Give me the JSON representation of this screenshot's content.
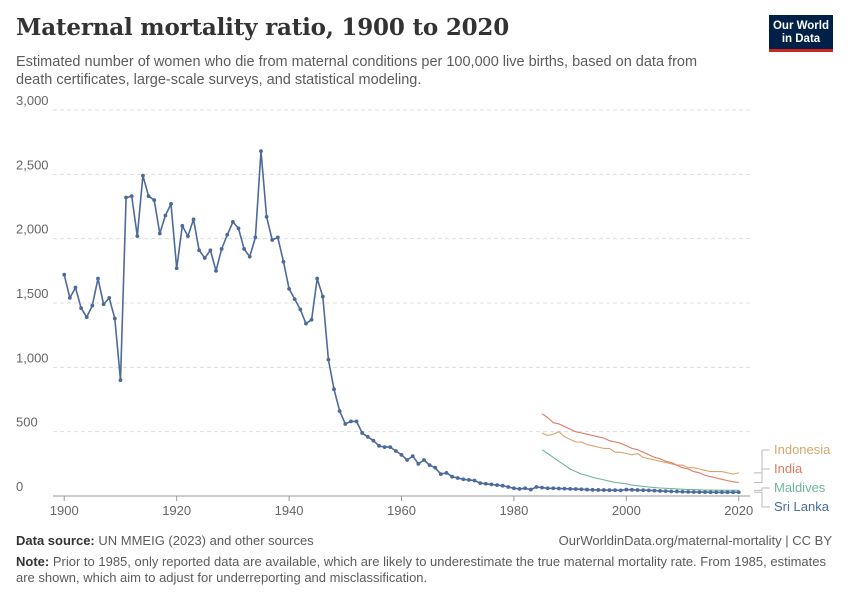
{
  "header": {
    "title": "Maternal mortality ratio, 1900 to 2020",
    "subtitle": "Estimated number of women who die from maternal conditions per 100,000 live births, based on data from death certificates, large-scale surveys, and statistical modeling."
  },
  "logo": {
    "line1": "Our World",
    "line2": "in Data"
  },
  "footer": {
    "source_label": "Data source:",
    "source_text": "UN MMEIG (2023) and other sources",
    "url": "OurWorldinData.org/maternal-mortality | CC BY",
    "note_label": "Note:",
    "note_text": "Prior to 1985, only reported data are available, which are likely to underestimate the true maternal mortality rate. From 1985, estimates are shown, which aim to adjust for underreporting and misclassification."
  },
  "chart_data": {
    "type": "line",
    "xlim": [
      1898,
      2022
    ],
    "ylim": [
      0,
      3000
    ],
    "x_ticks": [
      1900,
      1920,
      1940,
      1960,
      1980,
      2000,
      2020
    ],
    "y_ticks": [
      0,
      500,
      1000,
      1500,
      2000,
      2500,
      3000
    ],
    "y_tick_labels": [
      "0",
      "500",
      "1,000",
      "1,500",
      "2,000",
      "2,500",
      "3,000"
    ],
    "grid": true,
    "legend": "right",
    "series": [
      {
        "name": "Indonesia",
        "color": "#d6a56e",
        "markers": false,
        "x": [
          1985,
          1986,
          1987,
          1988,
          1989,
          1990,
          1991,
          1992,
          1993,
          1994,
          1995,
          1996,
          1997,
          1998,
          1999,
          2000,
          2001,
          2002,
          2003,
          2004,
          2005,
          2006,
          2007,
          2008,
          2009,
          2010,
          2011,
          2012,
          2013,
          2014,
          2015,
          2016,
          2017,
          2018,
          2019,
          2020
        ],
        "y": [
          490,
          470,
          480,
          500,
          460,
          440,
          420,
          420,
          400,
          390,
          380,
          370,
          370,
          340,
          340,
          330,
          320,
          330,
          300,
          290,
          280,
          270,
          260,
          250,
          240,
          240,
          220,
          220,
          210,
          200,
          190,
          190,
          190,
          180,
          170,
          180
        ]
      },
      {
        "name": "India",
        "color": "#e07a5f",
        "markers": false,
        "x": [
          1985,
          1986,
          1987,
          1988,
          1989,
          1990,
          1991,
          1992,
          1993,
          1994,
          1995,
          1996,
          1997,
          1998,
          1999,
          2000,
          2001,
          2002,
          2003,
          2004,
          2005,
          2006,
          2007,
          2008,
          2009,
          2010,
          2011,
          2012,
          2013,
          2014,
          2015,
          2016,
          2017,
          2018,
          2019,
          2020
        ],
        "y": [
          640,
          610,
          570,
          560,
          540,
          520,
          500,
          490,
          480,
          470,
          460,
          450,
          430,
          420,
          410,
          390,
          370,
          360,
          340,
          320,
          300,
          290,
          270,
          260,
          240,
          220,
          210,
          190,
          180,
          160,
          150,
          140,
          130,
          120,
          110,
          105
        ]
      },
      {
        "name": "Maldives",
        "color": "#6fb69a",
        "markers": false,
        "x": [
          1985,
          1986,
          1987,
          1988,
          1989,
          1990,
          1991,
          1992,
          1993,
          1994,
          1995,
          1996,
          1997,
          1998,
          1999,
          2000,
          2001,
          2002,
          2003,
          2004,
          2005,
          2006,
          2007,
          2008,
          2009,
          2010,
          2011,
          2012,
          2013,
          2014,
          2015,
          2016,
          2017,
          2018,
          2019,
          2020
        ],
        "y": [
          360,
          330,
          300,
          270,
          240,
          210,
          190,
          170,
          160,
          145,
          135,
          125,
          115,
          105,
          100,
          95,
          85,
          80,
          75,
          70,
          65,
          62,
          60,
          58,
          55,
          53,
          50,
          50,
          48,
          47,
          46,
          45,
          45,
          44,
          44,
          44
        ]
      },
      {
        "name": "Sri Lanka",
        "color": "#4c6a9c",
        "markers": true,
        "x": [
          1900,
          1901,
          1902,
          1903,
          1904,
          1905,
          1906,
          1907,
          1908,
          1909,
          1910,
          1911,
          1912,
          1913,
          1914,
          1915,
          1916,
          1917,
          1918,
          1919,
          1920,
          1921,
          1922,
          1923,
          1924,
          1925,
          1926,
          1927,
          1928,
          1929,
          1930,
          1931,
          1932,
          1933,
          1934,
          1935,
          1936,
          1937,
          1938,
          1939,
          1940,
          1941,
          1942,
          1943,
          1944,
          1945,
          1946,
          1947,
          1948,
          1949,
          1950,
          1951,
          1952,
          1953,
          1954,
          1955,
          1956,
          1957,
          1958,
          1959,
          1960,
          1961,
          1962,
          1963,
          1964,
          1965,
          1966,
          1967,
          1968,
          1969,
          1970,
          1971,
          1972,
          1973,
          1974,
          1975,
          1976,
          1977,
          1978,
          1979,
          1980,
          1981,
          1982,
          1983,
          1984,
          1985,
          1986,
          1987,
          1988,
          1989,
          1990,
          1991,
          1992,
          1993,
          1994,
          1995,
          1996,
          1997,
          1998,
          1999,
          2000,
          2001,
          2002,
          2003,
          2004,
          2005,
          2006,
          2007,
          2008,
          2009,
          2010,
          2011,
          2012,
          2013,
          2014,
          2015,
          2016,
          2017,
          2018,
          2019,
          2020
        ],
        "y": [
          1720,
          1540,
          1620,
          1460,
          1390,
          1480,
          1690,
          1490,
          1540,
          1380,
          900,
          2320,
          2330,
          2020,
          2490,
          2330,
          2300,
          2040,
          2180,
          2270,
          1770,
          2100,
          2020,
          2150,
          1910,
          1850,
          1910,
          1750,
          1920,
          2030,
          2130,
          2080,
          1920,
          1860,
          2010,
          2680,
          2170,
          1990,
          2010,
          1820,
          1610,
          1530,
          1450,
          1340,
          1370,
          1690,
          1550,
          1060,
          830,
          660,
          560,
          580,
          580,
          490,
          460,
          430,
          390,
          380,
          380,
          350,
          320,
          280,
          310,
          250,
          280,
          240,
          220,
          170,
          180,
          150,
          140,
          130,
          125,
          120,
          100,
          95,
          90,
          85,
          80,
          70,
          60,
          55,
          60,
          50,
          70,
          65,
          60,
          60,
          58,
          57,
          55,
          54,
          52,
          50,
          48,
          47,
          46,
          45,
          45,
          44,
          50,
          48,
          46,
          45,
          44,
          42,
          40,
          38,
          36,
          35,
          33,
          32,
          31,
          30,
          30,
          29,
          29,
          29,
          29,
          29,
          29
        ]
      }
    ]
  }
}
